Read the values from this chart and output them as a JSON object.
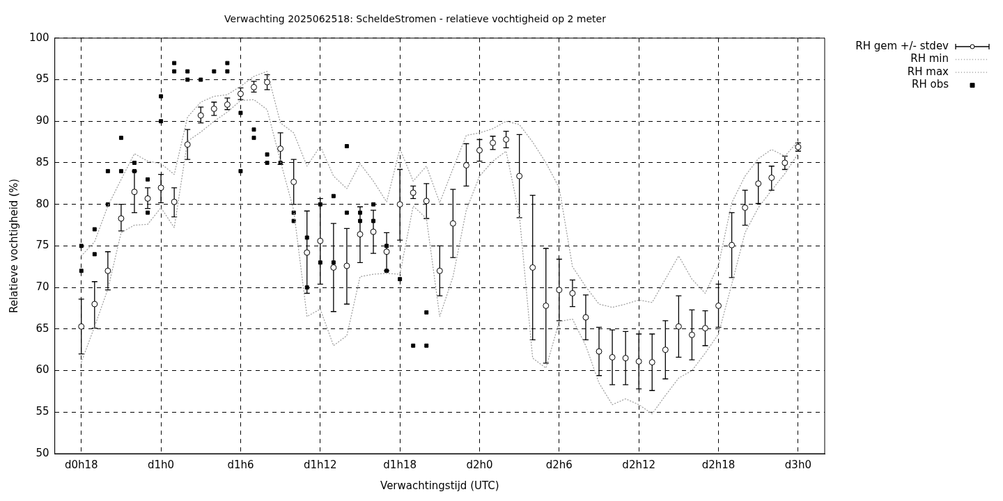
{
  "chart_data": {
    "type": "scatter",
    "title": "Verwachting 2025062518: ScheldeStromen - relatieve vochtigheid op 2 meter",
    "xlabel": "Verwachtingstijd (UTC)",
    "ylabel": "Relatieve vochtigheid (%)",
    "categories": [
      null,
      null,
      "d0h18",
      null,
      null,
      null,
      null,
      null,
      "d1h0",
      null,
      null,
      null,
      null,
      null,
      "d1h6",
      null,
      null,
      null,
      null,
      null,
      "d1h12",
      null,
      null,
      null,
      null,
      null,
      "d1h18",
      null,
      null,
      null,
      null,
      null,
      "d2h0",
      null,
      null,
      null,
      null,
      null,
      "d2h6",
      null,
      null,
      null,
      null,
      null,
      "d2h12",
      null,
      null,
      null,
      null,
      null,
      "d2h18",
      null,
      null,
      null,
      null,
      null,
      "d3h0",
      null,
      null
    ],
    "series": [
      {
        "name": "RH gem +/- stdev",
        "marker": "circle",
        "color": "#000000",
        "values": [
          null,
          null,
          65.3,
          68,
          72,
          78.3,
          81.5,
          80.7,
          82,
          80.3,
          87.2,
          90.7,
          91.5,
          92,
          93.3,
          94.1,
          94.7,
          86.7,
          82.7,
          74.2,
          75.6,
          72.4,
          72.6,
          76.4,
          76.7,
          74.3,
          80,
          81.4,
          80.4,
          72,
          77.7,
          84.7,
          86.5,
          87.4,
          87.8,
          83.4,
          72.4,
          67.8,
          69.7,
          69.3,
          66.4,
          62.3,
          61.6,
          61.5,
          61.1,
          61,
          62.5,
          65.3,
          64.3,
          65.1,
          67.8,
          75.1,
          79.6,
          82.5,
          83.2,
          85,
          86.9,
          null,
          null
        ],
        "errors": [
          null,
          null,
          [
            62,
            68.6
          ],
          [
            65.1,
            70.7
          ],
          [
            69.7,
            74.3
          ],
          [
            76.8,
            80
          ],
          [
            79,
            84
          ],
          [
            79.5,
            82
          ],
          [
            80.2,
            83.6
          ],
          [
            78.5,
            82
          ],
          [
            85.4,
            89
          ],
          [
            89.8,
            91.7
          ],
          [
            90.7,
            92.3
          ],
          [
            91.4,
            92.8
          ],
          [
            92.6,
            94
          ],
          [
            93.5,
            94.8
          ],
          [
            93.8,
            95.6
          ],
          [
            84.8,
            88.6
          ],
          [
            80,
            85.4
          ],
          [
            69.3,
            79.2
          ],
          [
            70.4,
            80.7
          ],
          [
            67.1,
            77.7
          ],
          [
            68,
            77.1
          ],
          [
            73,
            79.7
          ],
          [
            74.1,
            79.3
          ],
          [
            72,
            76.6
          ],
          [
            75.7,
            84.2
          ],
          [
            80.7,
            82.2
          ],
          [
            78.3,
            82.5
          ],
          [
            69,
            75
          ],
          [
            73.6,
            81.8
          ],
          [
            82.2,
            87.3
          ],
          [
            85.2,
            87.8
          ],
          [
            86.6,
            88.2
          ],
          [
            86.8,
            88.8
          ],
          [
            78.4,
            88.4
          ],
          [
            63.7,
            81.1
          ],
          [
            60.9,
            74.7
          ],
          [
            66,
            73.4
          ],
          [
            67.7,
            70.9
          ],
          [
            63.7,
            69.1
          ],
          [
            59.4,
            65.2
          ],
          [
            58.3,
            64.9
          ],
          [
            58.3,
            64.7
          ],
          [
            57.8,
            64.4
          ],
          [
            57.6,
            64.4
          ],
          [
            59,
            66
          ],
          [
            61.6,
            69
          ],
          [
            61.3,
            67.3
          ],
          [
            63,
            67.2
          ],
          [
            65.2,
            70.4
          ],
          [
            71.2,
            79
          ],
          [
            77.5,
            81.7
          ],
          [
            80.1,
            85
          ],
          [
            81.7,
            84.6
          ],
          [
            84.2,
            85.8
          ],
          [
            86.4,
            87.4
          ],
          null,
          null
        ]
      },
      {
        "name": "RH min",
        "type": "line",
        "marker": "none",
        "line_style": "dotted",
        "color": "#a0a0a0",
        "values": [
          null,
          null,
          61,
          65.3,
          69.8,
          76.6,
          77.5,
          77.6,
          79.6,
          77.2,
          87.6,
          88.7,
          90,
          91.1,
          92.5,
          92.6,
          91.4,
          85.2,
          79.3,
          66.5,
          67.4,
          63,
          64.2,
          71.3,
          71.6,
          71.7,
          71.6,
          79.8,
          78.3,
          66.5,
          71.3,
          79.3,
          83.4,
          85.2,
          86.4,
          78.7,
          61.5,
          60.3,
          65.9,
          66.2,
          63,
          58.5,
          55.9,
          56.6,
          55.9,
          54.8,
          57,
          59.1,
          60,
          62.1,
          64.4,
          70.4,
          76.6,
          79.6,
          81.7,
          83.7,
          86.1,
          null,
          null
        ]
      },
      {
        "name": "RH max",
        "type": "line",
        "marker": "none",
        "line_style": "dotted",
        "color": "#a0a0a0",
        "values": [
          null,
          null,
          73.8,
          75.5,
          79.8,
          83,
          86.1,
          85.2,
          84.9,
          83.6,
          90.5,
          92.3,
          93,
          93.2,
          94.2,
          95.4,
          96,
          89.8,
          88.6,
          84.6,
          87,
          83.4,
          81.9,
          84.9,
          82.8,
          80.3,
          86.7,
          82.8,
          84.6,
          80.2,
          84.3,
          88.3,
          88.6,
          89.1,
          90,
          89.6,
          87.5,
          85,
          82,
          72.5,
          70.1,
          68,
          67.6,
          68,
          68.5,
          68.2,
          71,
          73.8,
          71,
          69.3,
          72.7,
          80.2,
          83.4,
          85.5,
          86.6,
          85.8,
          87.6,
          null,
          null
        ]
      },
      {
        "name": "RH obs",
        "marker": "square",
        "color": "#000000",
        "values": [
          null,
          null,
          75,
          77,
          84,
          88,
          85,
          83,
          93,
          97,
          96,
          95,
          96,
          97,
          91,
          89,
          86,
          85,
          79,
          76,
          80,
          81,
          87,
          79,
          80,
          75,
          71,
          63,
          67,
          null,
          null,
          null,
          null,
          null,
          null,
          null,
          null,
          null,
          null,
          null,
          null,
          null,
          null,
          null,
          null,
          null,
          null,
          null,
          null,
          null,
          null,
          null,
          null,
          null,
          null,
          null,
          null,
          null,
          null
        ]
      },
      {
        "marker": "square",
        "color": "#000000",
        "values": [
          null,
          null,
          72,
          74,
          80,
          84,
          84,
          79,
          90,
          96,
          95,
          null,
          null,
          96,
          84,
          88,
          85,
          null,
          78,
          70,
          73,
          73,
          79,
          78,
          78,
          72,
          null,
          null,
          63,
          null,
          null,
          null,
          null,
          null,
          null,
          null,
          null,
          null,
          null,
          null,
          null,
          null,
          null,
          null,
          null,
          null,
          null,
          null,
          null,
          null,
          null,
          null,
          null,
          null,
          null,
          null,
          null,
          null,
          null
        ]
      }
    ],
    "ylim": [
      50,
      100
    ],
    "yticks": [
      50,
      55,
      60,
      65,
      70,
      75,
      80,
      85,
      90,
      95,
      100
    ],
    "grid": true,
    "legend": "top right"
  }
}
